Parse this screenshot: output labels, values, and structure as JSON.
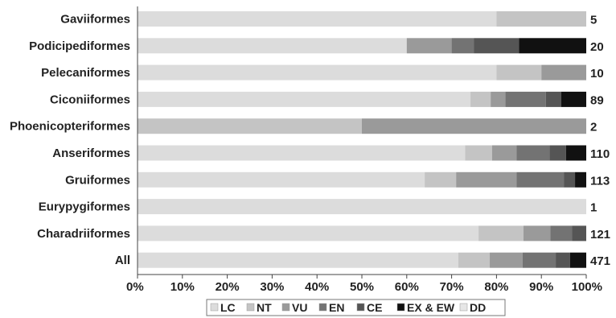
{
  "chart_data": {
    "type": "bar",
    "orientation": "horizontal",
    "stacked": true,
    "normalized": true,
    "categories": [
      "Gaviiformes",
      "Podicipediformes",
      "Pelecaniformes",
      "Ciconiiformes",
      "Phoenicopteriformes",
      "Anseriformes",
      "Gruiformes",
      "Eurypygiformes",
      "Charadriiformes",
      "All"
    ],
    "counts": [
      "5",
      "20",
      "10",
      "89",
      "2",
      "110",
      "113",
      "1",
      "121",
      "471"
    ],
    "series": [
      {
        "name": "LC",
        "color": "#dcdcdc",
        "values": [
          80,
          60,
          80,
          74.2,
          0,
          73,
          64,
          100,
          76,
          71.5
        ]
      },
      {
        "name": "NT",
        "color": "#c4c4c4",
        "values": [
          20,
          0,
          10,
          4.5,
          50,
          6,
          7,
          0,
          10,
          7
        ]
      },
      {
        "name": "VU",
        "color": "#9a9a9a",
        "values": [
          0,
          10,
          10,
          3.3,
          50,
          5.5,
          13.5,
          0,
          6,
          7.3
        ]
      },
      {
        "name": "EN",
        "color": "#737373",
        "values": [
          0,
          5,
          0,
          9,
          0,
          7.3,
          10.5,
          0,
          4.8,
          7.4
        ]
      },
      {
        "name": "CE",
        "color": "#555555",
        "values": [
          0,
          10,
          0,
          3.4,
          0,
          3.7,
          2.5,
          0,
          3.2,
          3.2
        ]
      },
      {
        "name": "EX & EW",
        "color": "#111111",
        "values": [
          0,
          15,
          0,
          5.6,
          0,
          4.5,
          2.5,
          0,
          0,
          3.6
        ]
      },
      {
        "name": "DD",
        "color": "#e6e6e6",
        "values": [
          0,
          0,
          0,
          0,
          0,
          0,
          0,
          0,
          0,
          0
        ]
      }
    ],
    "x_ticks": [
      "0%",
      "10%",
      "20%",
      "30%",
      "40%",
      "50%",
      "60%",
      "70%",
      "80%",
      "90%",
      "100%"
    ],
    "xlim": [
      0,
      100
    ],
    "grid": false,
    "legend_position": "bottom"
  }
}
